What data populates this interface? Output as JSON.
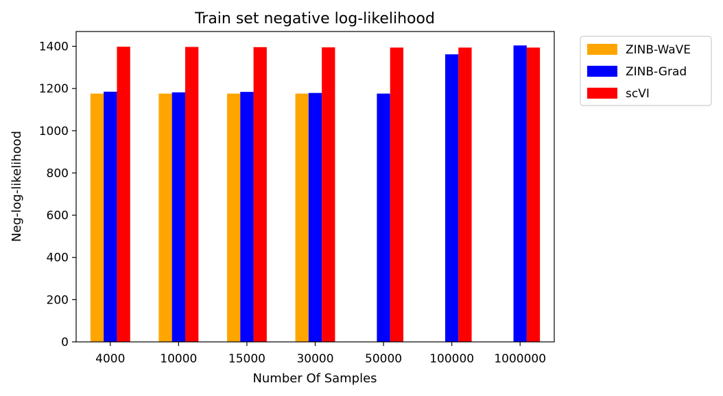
{
  "chart_data": {
    "type": "bar",
    "title": "Train set negative log-likelihood",
    "xlabel": "Number Of Samples",
    "ylabel": "Neg-log-likelihood",
    "categories": [
      "4000",
      "10000",
      "15000",
      "30000",
      "50000",
      "100000",
      "1000000"
    ],
    "series": [
      {
        "name": "ZINB-WaVE",
        "color": "#ffa500",
        "values": [
          1176,
          1176,
          1176,
          1176,
          null,
          null,
          null
        ]
      },
      {
        "name": "ZINB-Grad",
        "color": "#0000ff",
        "values": [
          1185,
          1182,
          1184,
          1179,
          1176,
          1362,
          1404
        ]
      },
      {
        "name": "scVI",
        "color": "#ff0000",
        "values": [
          1398,
          1397,
          1396,
          1395,
          1394,
          1394,
          1394
        ]
      }
    ],
    "ylim": [
      0,
      1470
    ],
    "yticks": [
      0,
      200,
      400,
      600,
      800,
      1000,
      1200,
      1400
    ],
    "grid": false,
    "legend_position": "outside-top-right"
  }
}
